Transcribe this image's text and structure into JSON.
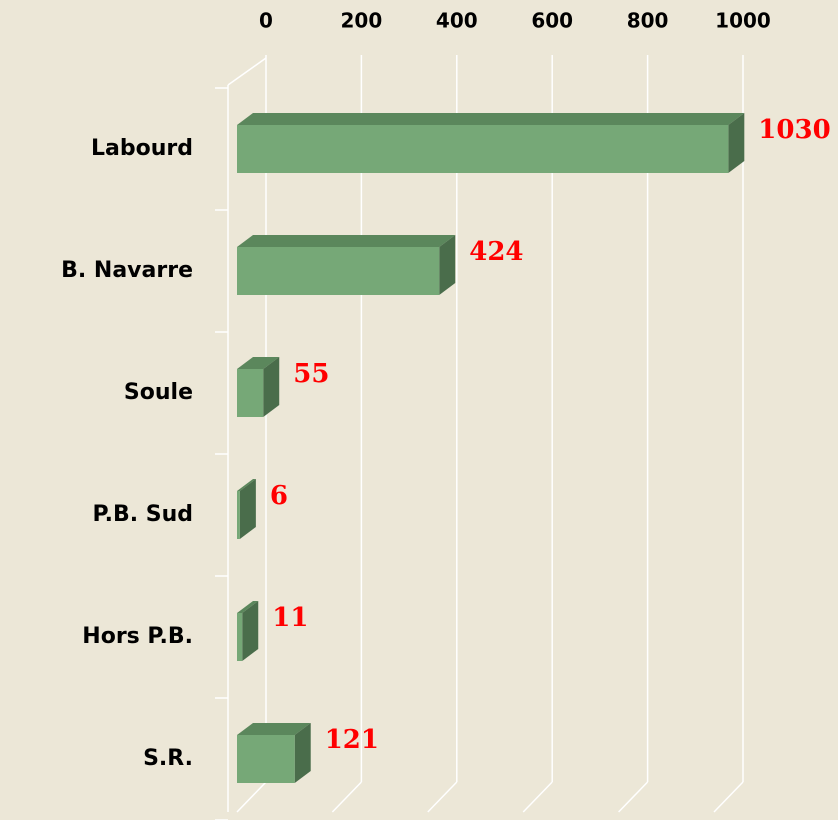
{
  "chart_data": {
    "type": "bar3d_horizontal",
    "categories": [
      "Labourd",
      "B. Navarre",
      "Soule",
      "P.B. Sud",
      "Hors P.B.",
      "S.R."
    ],
    "values": [
      1030,
      424,
      55,
      6,
      11,
      121
    ],
    "color": "#76a877",
    "xlim": [
      0,
      1000
    ],
    "xticks": [
      0,
      200,
      400,
      600,
      800,
      1000
    ],
    "grid": true
  }
}
